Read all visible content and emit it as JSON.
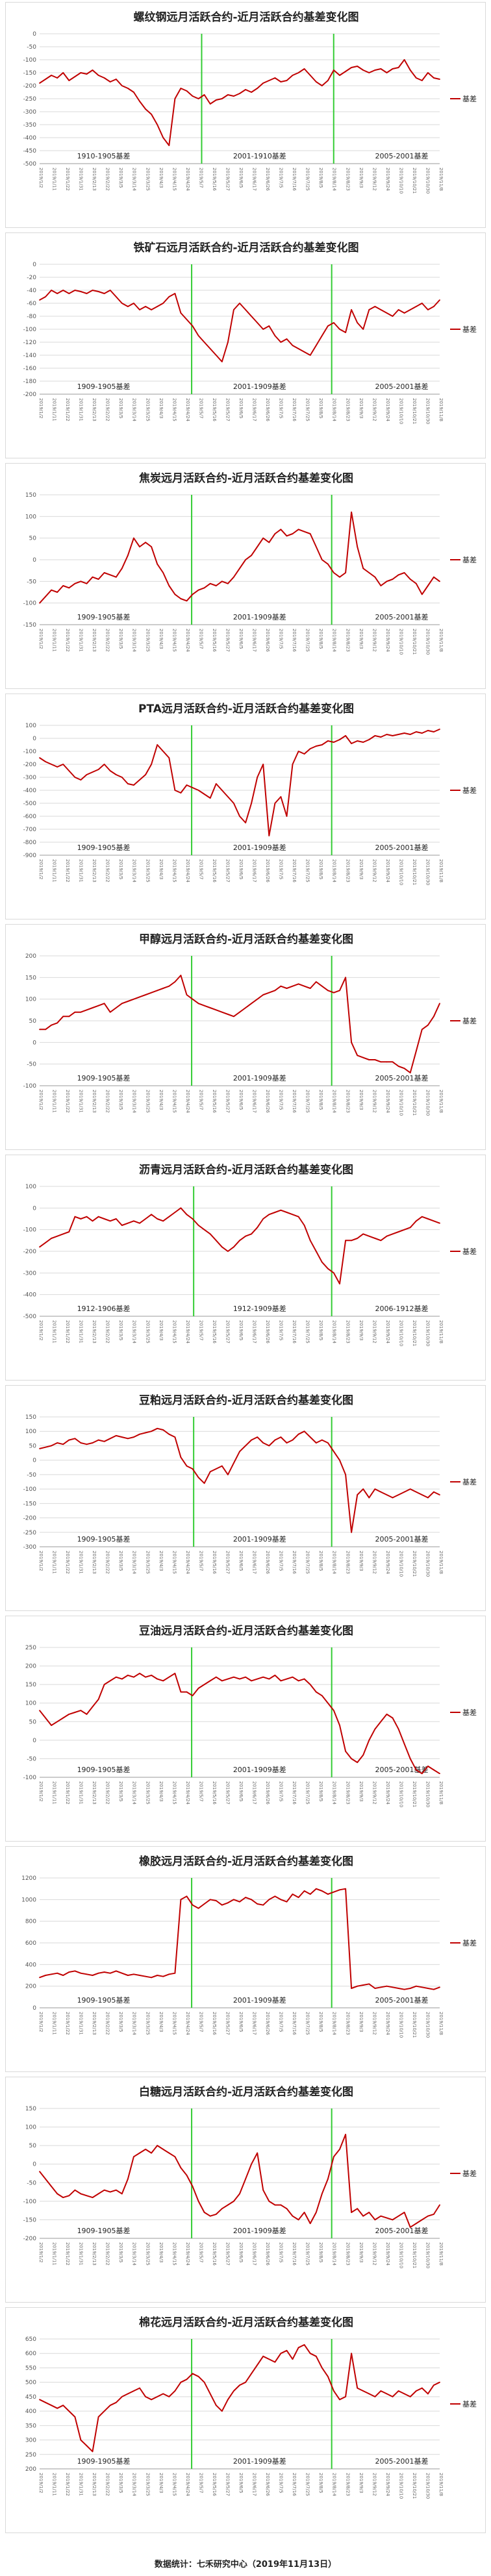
{
  "footer": "数据统计：七禾研究中心（2019年11月13日）",
  "colors": {
    "series": "#c00000",
    "divider": "#33cc33",
    "grid": "#d9d9d9"
  },
  "common_x_labels": [
    "2019/1/2",
    "2019/1/11",
    "2019/1/22",
    "2019/1/31",
    "2019/2/13",
    "2019/2/22",
    "2019/3/5",
    "2019/3/14",
    "2019/3/25",
    "2019/4/3",
    "2019/4/15",
    "2019/4/24",
    "2019/5/7",
    "2019/5/16",
    "2019/5/27",
    "2019/6/5",
    "2019/6/17",
    "2019/6/26",
    "2019/7/5",
    "2019/7/16",
    "2019/7/25",
    "2019/8/5",
    "2019/8/14",
    "2019/8/23",
    "2019/9/3",
    "2019/9/12",
    "2019/9/24",
    "2019/10/10",
    "2019/10/21",
    "2019/10/30",
    "2019/11/8"
  ],
  "chart_data": [
    {
      "type": "line",
      "title": "螺纹钢远月活跃合约-近月活跃合约基差变化图",
      "legend": "基差",
      "ylim": [
        -500,
        0
      ],
      "ystep": 50,
      "annotations": [
        "1910-1905基差",
        "2001-1910基差",
        "2005-2001基差"
      ],
      "dividers": [
        0.405,
        0.735
      ],
      "annotation_x": [
        0.16,
        0.55,
        0.905
      ],
      "values": [
        -190,
        -175,
        -160,
        -170,
        -150,
        -180,
        -165,
        -150,
        -155,
        -140,
        -160,
        -170,
        -185,
        -175,
        -200,
        -210,
        -225,
        -260,
        -290,
        -310,
        -350,
        -400,
        -430,
        -250,
        -210,
        -220,
        -240,
        -250,
        -235,
        -270,
        -255,
        -250,
        -235,
        -240,
        -230,
        -215,
        -225,
        -210,
        -190,
        -180,
        -170,
        -185,
        -180,
        -160,
        -150,
        -135,
        -160,
        -185,
        -200,
        -180,
        -140,
        -160,
        -145,
        -130,
        -125,
        -140,
        -150,
        -140,
        -135,
        -150,
        -135,
        -130,
        -100,
        -140,
        -170,
        -180,
        -150,
        -170,
        -175
      ]
    },
    {
      "type": "line",
      "title": "铁矿石远月活跃合约-近月活跃合约基差变化图",
      "legend": "基差",
      "ylim": [
        -200,
        0
      ],
      "ystep": 20,
      "annotations": [
        "1909-1905基差",
        "2001-1909基差",
        "2005-2001基差"
      ],
      "dividers": [
        0.38,
        0.73
      ],
      "annotation_x": [
        0.16,
        0.55,
        0.905
      ],
      "values": [
        -55,
        -50,
        -40,
        -45,
        -40,
        -45,
        -40,
        -42,
        -45,
        -40,
        -42,
        -45,
        -40,
        -50,
        -60,
        -65,
        -60,
        -70,
        -65,
        -70,
        -65,
        -60,
        -50,
        -45,
        -75,
        -85,
        -95,
        -110,
        -120,
        -130,
        -140,
        -150,
        -120,
        -70,
        -60,
        -70,
        -80,
        -90,
        -100,
        -95,
        -110,
        -120,
        -115,
        -125,
        -130,
        -135,
        -140,
        -125,
        -110,
        -95,
        -90,
        -100,
        -105,
        -70,
        -90,
        -100,
        -70,
        -65,
        -70,
        -75,
        -80,
        -70,
        -75,
        -70,
        -65,
        -60,
        -70,
        -65,
        -55
      ]
    },
    {
      "type": "line",
      "title": "焦炭远月活跃合约-近月活跃合约基差变化图",
      "legend": "基差",
      "ylim": [
        -150,
        150
      ],
      "ystep": 50,
      "annotations": [
        "1909-1905基差",
        "2001-1909基差",
        "2005-2001基差"
      ],
      "dividers": [
        0.38,
        0.73
      ],
      "annotation_x": [
        0.16,
        0.55,
        0.905
      ],
      "values": [
        -100,
        -85,
        -70,
        -75,
        -60,
        -65,
        -55,
        -50,
        -55,
        -40,
        -45,
        -30,
        -35,
        -40,
        -20,
        10,
        50,
        30,
        40,
        30,
        -10,
        -30,
        -60,
        -80,
        -90,
        -95,
        -80,
        -70,
        -65,
        -55,
        -60,
        -50,
        -55,
        -40,
        -20,
        0,
        10,
        30,
        50,
        40,
        60,
        70,
        55,
        60,
        70,
        65,
        60,
        30,
        0,
        -10,
        -30,
        -40,
        -30,
        110,
        30,
        -20,
        -30,
        -40,
        -60,
        -50,
        -45,
        -35,
        -30,
        -45,
        -55,
        -80,
        -60,
        -40,
        -50
      ]
    },
    {
      "type": "line",
      "title": "PTA远月活跃合约-近月活跃合约基差变化图",
      "legend": "基差",
      "ylim": [
        -900,
        100
      ],
      "ystep": 100,
      "annotations": [
        "1909-1905基差",
        "2001-1909基差",
        "2005-2001基差"
      ],
      "dividers": [
        0.38,
        0.73
      ],
      "annotation_x": [
        0.16,
        0.55,
        0.905
      ],
      "values": [
        -150,
        -180,
        -200,
        -220,
        -200,
        -250,
        -300,
        -320,
        -280,
        -260,
        -240,
        -200,
        -250,
        -280,
        -300,
        -350,
        -360,
        -320,
        -280,
        -200,
        -50,
        -100,
        -150,
        -400,
        -420,
        -360,
        -380,
        -400,
        -430,
        -460,
        -350,
        -400,
        -450,
        -500,
        -600,
        -650,
        -500,
        -300,
        -200,
        -750,
        -500,
        -450,
        -600,
        -200,
        -100,
        -120,
        -80,
        -60,
        -50,
        -20,
        -30,
        -10,
        20,
        -40,
        -20,
        -30,
        -10,
        20,
        10,
        30,
        20,
        30,
        40,
        30,
        50,
        40,
        60,
        50,
        70
      ]
    },
    {
      "type": "line",
      "title": "甲醇远月活跃合约-近月活跃合约基差变化图",
      "legend": "基差",
      "ylim": [
        -100,
        200
      ],
      "ystep": 50,
      "annotations": [
        "1909-1905基差",
        "2001-1909基差",
        "2005-2001基差"
      ],
      "dividers": [
        0.38,
        0.73
      ],
      "annotation_x": [
        0.16,
        0.55,
        0.905
      ],
      "values": [
        30,
        30,
        40,
        45,
        60,
        60,
        70,
        70,
        75,
        80,
        85,
        90,
        70,
        80,
        90,
        95,
        100,
        105,
        110,
        115,
        120,
        125,
        130,
        140,
        155,
        110,
        100,
        90,
        85,
        80,
        75,
        70,
        65,
        60,
        70,
        80,
        90,
        100,
        110,
        115,
        120,
        130,
        125,
        130,
        135,
        130,
        125,
        140,
        130,
        120,
        115,
        120,
        150,
        0,
        -30,
        -35,
        -40,
        -40,
        -45,
        -45,
        -45,
        -55,
        -60,
        -70,
        -20,
        30,
        40,
        60,
        90
      ]
    },
    {
      "type": "line",
      "title": "沥青远月活跃合约-近月活跃合约基差变化图",
      "legend": "基差",
      "ylim": [
        -500,
        100
      ],
      "ystep": 100,
      "annotations": [
        "1912-1906基差",
        "1912-1909基差",
        "2006-1912基差"
      ],
      "dividers": [
        0.385,
        0.73
      ],
      "annotation_x": [
        0.16,
        0.55,
        0.905
      ],
      "values": [
        -180,
        -160,
        -140,
        -130,
        -120,
        -110,
        -40,
        -50,
        -40,
        -60,
        -40,
        -50,
        -60,
        -50,
        -80,
        -70,
        -60,
        -70,
        -50,
        -30,
        -50,
        -60,
        -40,
        -20,
        0,
        -30,
        -50,
        -80,
        -100,
        -120,
        -150,
        -180,
        -200,
        -180,
        -150,
        -130,
        -120,
        -90,
        -50,
        -30,
        -20,
        -10,
        -20,
        -30,
        -40,
        -80,
        -150,
        -200,
        -250,
        -280,
        -300,
        -350,
        -150,
        -150,
        -140,
        -120,
        -130,
        -140,
        -150,
        -130,
        -120,
        -110,
        -100,
        -90,
        -60,
        -40,
        -50,
        -60,
        -70
      ]
    },
    {
      "type": "line",
      "title": "豆粕远月活跃合约-近月活跃合约基差变化图",
      "legend": "基差",
      "ylim": [
        -300,
        150
      ],
      "ystep": 50,
      "annotations": [
        "1909-1905基差",
        "2001-1909基差",
        "2005-2001基差"
      ],
      "dividers": [
        0.385,
        0.73
      ],
      "annotation_x": [
        0.16,
        0.55,
        0.905
      ],
      "values": [
        40,
        45,
        50,
        60,
        55,
        70,
        75,
        60,
        55,
        60,
        70,
        65,
        75,
        85,
        80,
        75,
        80,
        90,
        95,
        100,
        110,
        105,
        90,
        80,
        10,
        -20,
        -30,
        -60,
        -80,
        -40,
        -30,
        -20,
        -50,
        -10,
        30,
        50,
        70,
        80,
        60,
        50,
        70,
        80,
        60,
        70,
        90,
        100,
        80,
        60,
        70,
        60,
        30,
        0,
        -50,
        -250,
        -120,
        -100,
        -130,
        -100,
        -110,
        -120,
        -130,
        -120,
        -110,
        -100,
        -110,
        -120,
        -130,
        -110,
        -120
      ]
    },
    {
      "type": "line",
      "title": "豆油远月活跃合约-近月活跃合约基差变化图",
      "legend": "基差",
      "ylim": [
        -100,
        250
      ],
      "ystep": 50,
      "annotations": [
        "1909-1905基差",
        "2001-1909基差",
        "2005-2001基差"
      ],
      "dividers": [
        0.38,
        0.73
      ],
      "annotation_x": [
        0.16,
        0.55,
        0.905
      ],
      "values": [
        80,
        60,
        40,
        50,
        60,
        70,
        75,
        80,
        70,
        90,
        110,
        150,
        160,
        170,
        165,
        175,
        170,
        180,
        170,
        175,
        165,
        160,
        170,
        180,
        130,
        130,
        120,
        140,
        150,
        160,
        170,
        160,
        165,
        170,
        165,
        170,
        160,
        165,
        170,
        165,
        175,
        160,
        165,
        170,
        160,
        165,
        150,
        130,
        120,
        100,
        80,
        40,
        -30,
        -50,
        -60,
        -40,
        0,
        30,
        50,
        70,
        60,
        30,
        -10,
        -50,
        -80,
        -90,
        -70,
        -80,
        -90
      ]
    },
    {
      "type": "line",
      "title": "橡胶远月活跃合约-近月活跃合约基差变化图",
      "legend": "基差",
      "ylim": [
        0,
        1200
      ],
      "ystep": 200,
      "annotations": [
        "1909-1905基差",
        "2001-1909基差",
        "2005-2001基差"
      ],
      "dividers": [
        0.38,
        0.73
      ],
      "annotation_x": [
        0.16,
        0.55,
        0.905
      ],
      "values": [
        280,
        300,
        310,
        320,
        300,
        330,
        340,
        320,
        310,
        300,
        320,
        330,
        320,
        340,
        320,
        300,
        310,
        300,
        290,
        280,
        300,
        290,
        310,
        320,
        1000,
        1030,
        950,
        920,
        960,
        1000,
        990,
        950,
        970,
        1000,
        980,
        1020,
        1000,
        960,
        950,
        1000,
        1030,
        1000,
        980,
        1050,
        1020,
        1080,
        1050,
        1100,
        1080,
        1050,
        1070,
        1090,
        1100,
        180,
        200,
        210,
        220,
        180,
        190,
        200,
        190,
        180,
        170,
        180,
        200,
        190,
        180,
        170,
        190
      ]
    },
    {
      "type": "line",
      "title": "白糖远月活跃合约-近月活跃合约基差变化图",
      "legend": "基差",
      "ylim": [
        -200,
        150
      ],
      "ystep": 50,
      "annotations": [
        "1909-1905基差",
        "2001-1909基差",
        "2005-2001基差"
      ],
      "dividers": [
        0.38,
        0.73
      ],
      "annotation_x": [
        0.16,
        0.55,
        0.905
      ],
      "values": [
        -20,
        -40,
        -60,
        -80,
        -90,
        -85,
        -70,
        -80,
        -85,
        -90,
        -80,
        -70,
        -75,
        -70,
        -80,
        -40,
        20,
        30,
        40,
        30,
        50,
        40,
        30,
        20,
        -10,
        -30,
        -60,
        -100,
        -130,
        -140,
        -135,
        -120,
        -110,
        -100,
        -80,
        -40,
        0,
        30,
        -70,
        -100,
        -110,
        -110,
        -120,
        -140,
        -150,
        -130,
        -160,
        -130,
        -80,
        -40,
        20,
        40,
        80,
        -130,
        -120,
        -140,
        -130,
        -150,
        -140,
        -145,
        -150,
        -140,
        -130,
        -170,
        -160,
        -150,
        -140,
        -135,
        -110
      ]
    },
    {
      "type": "line",
      "title": "棉花远月活跃合约-近月活跃合约基差变化图",
      "legend": "基差",
      "ylim": [
        200,
        650
      ],
      "ystep": 50,
      "annotations": [
        "1909-1905基差",
        "2001-1909基差",
        "2005-2001基差"
      ],
      "dividers": [
        0.38,
        0.73
      ],
      "annotation_x": [
        0.16,
        0.55,
        0.905
      ],
      "values": [
        440,
        430,
        420,
        410,
        420,
        400,
        380,
        300,
        280,
        260,
        380,
        400,
        420,
        430,
        450,
        460,
        470,
        480,
        450,
        440,
        450,
        460,
        450,
        470,
        500,
        510,
        530,
        520,
        500,
        460,
        420,
        400,
        440,
        470,
        490,
        500,
        530,
        560,
        590,
        580,
        570,
        600,
        610,
        580,
        620,
        630,
        600,
        590,
        550,
        520,
        470,
        440,
        450,
        600,
        480,
        470,
        460,
        450,
        470,
        460,
        450,
        470,
        460,
        450,
        470,
        480,
        460,
        490,
        500
      ]
    }
  ]
}
